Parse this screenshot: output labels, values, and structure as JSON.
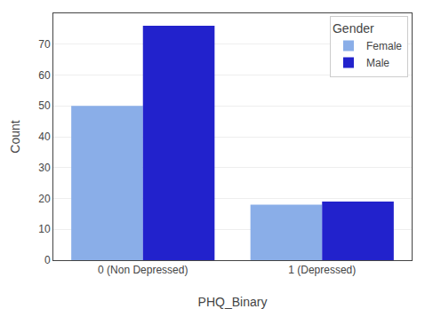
{
  "chart_data": {
    "type": "bar",
    "categories": [
      "0 (Non Depressed)",
      "1 (Depressed)"
    ],
    "series": [
      {
        "name": "Female",
        "color": "#8aaee8",
        "values": [
          50,
          18
        ]
      },
      {
        "name": "Male",
        "color": "#2222cc",
        "values": [
          76,
          19
        ]
      }
    ],
    "xlabel": "PHQ_Binary",
    "ylabel": "Count",
    "legend_title": "Gender",
    "legend": "upper right",
    "ylim": [
      0,
      80
    ],
    "yticks": [
      0,
      10,
      20,
      30,
      40,
      50,
      60,
      70
    ],
    "grid": true
  }
}
